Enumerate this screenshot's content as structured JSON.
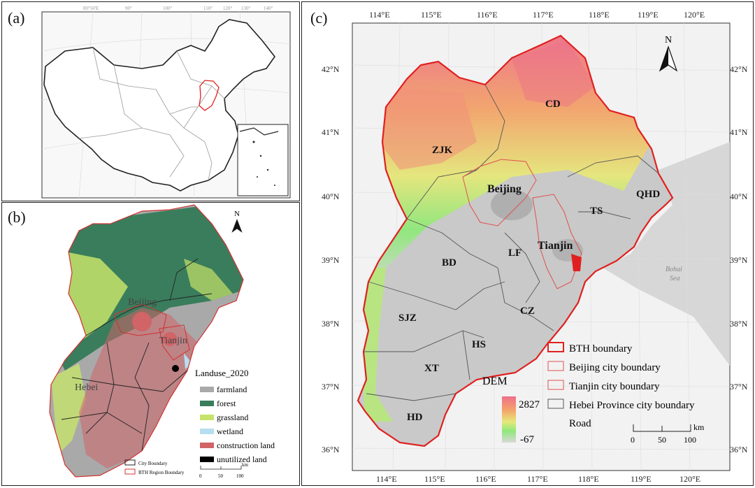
{
  "panels": {
    "a": {
      "label": "(a)",
      "grid_labels": [
        "80°50'E",
        "90°",
        "100°",
        "110°",
        "120°",
        "130°",
        "140°"
      ]
    },
    "b": {
      "label": "(b)",
      "north": "N",
      "places": {
        "beijing": "Beijing",
        "tianjin": "Tianjin",
        "hebei": "Hebei"
      },
      "legend": {
        "title": "Landuse_2020",
        "items": [
          {
            "label": "farmland",
            "color": "#a9a9a9"
          },
          {
            "label": "forest",
            "color": "#3a7d5c"
          },
          {
            "label": "grassland",
            "color": "#c6e36a"
          },
          {
            "label": "wetland",
            "color": "#b7def0"
          },
          {
            "label": "construction land",
            "color": "#d06467"
          },
          {
            "label": "unutilized land",
            "color": "#000000"
          }
        ]
      },
      "boundary_legend": {
        "city": "City Boundary",
        "region": "BTH Region Boundary"
      },
      "scale": {
        "unit": "km",
        "ticks": [
          "0",
          "50",
          "100"
        ]
      }
    },
    "c": {
      "label": "(c)",
      "north": "N",
      "lon_labels": [
        "114°E",
        "115°E",
        "116°E",
        "117°E",
        "118°E",
        "119°E",
        "120°E"
      ],
      "lat_labels": [
        "42°N",
        "41°N",
        "40°N",
        "39°N",
        "38°N",
        "37°N",
        "36°N"
      ],
      "cities": [
        "ZJK",
        "CD",
        "Beijing",
        "QHD",
        "TS",
        "LF",
        "Tianjin",
        "BD",
        "SJZ",
        "CZ",
        "HS",
        "XT",
        "HD"
      ],
      "sea": [
        "Bohai",
        "Sea"
      ],
      "dem": {
        "title": "DEM",
        "max": "2827",
        "min": "-67"
      },
      "legend": [
        {
          "label": "BTH boundary",
          "color": "#e02020",
          "weight": "thick"
        },
        {
          "label": "Beijing city boundary",
          "color": "#e05050",
          "weight": "thin"
        },
        {
          "label": "Tianjin city boundary",
          "color": "#e05050",
          "weight": "thin"
        },
        {
          "label": "Hebei Province city boundary",
          "color": "#555555",
          "weight": "thin"
        },
        {
          "label": "Road",
          "color": "",
          "weight": "none"
        }
      ],
      "scale": {
        "unit": "km",
        "ticks": [
          "0",
          "50",
          "100"
        ]
      }
    }
  }
}
